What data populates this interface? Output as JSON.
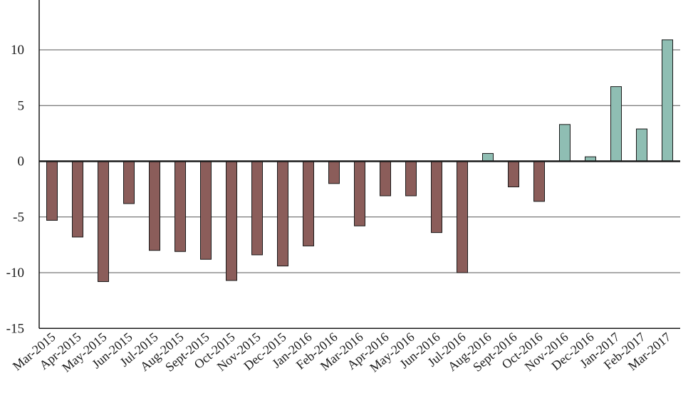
{
  "chart_data": {
    "type": "bar",
    "title": "",
    "xlabel": "",
    "ylabel": "",
    "ylim": [
      -15,
      15
    ],
    "yticks": [
      -15,
      -10,
      -5,
      0,
      5,
      10
    ],
    "grid": "horizontal",
    "colors": {
      "negative": "#8b5d5a",
      "positive": "#8fbeb3",
      "edge": "#1a1a1a"
    },
    "categories": [
      "Mar-2015",
      "Apr-2015",
      "May-2015",
      "Jun-2015",
      "Jul-2015",
      "Aug-2015",
      "Sept-2015",
      "Oct-2015",
      "Nov-2015",
      "Dec-2015",
      "Jan-2016",
      "Feb-2016",
      "Mar-2016",
      "Apr-2016",
      "May-2016",
      "Jun-2016",
      "Jul-2016",
      "Aug-2016",
      "Sept-2016",
      "Oct-2016",
      "Nov-2016",
      "Dec-2016",
      "Jan-2017",
      "Feb-2017",
      "Mar-2017"
    ],
    "values": [
      -5.3,
      -6.8,
      -10.8,
      -3.8,
      -8.0,
      -8.1,
      -8.8,
      -10.7,
      -8.4,
      -9.4,
      -7.6,
      -2.0,
      -5.8,
      -3.1,
      -3.1,
      -6.4,
      -10.0,
      0.7,
      -2.3,
      -3.6,
      3.3,
      0.4,
      6.7,
      2.9,
      10.9
    ]
  }
}
